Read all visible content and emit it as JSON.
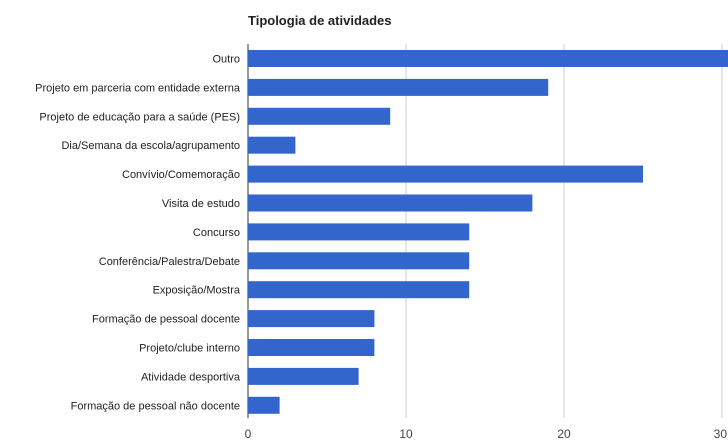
{
  "chart_data": {
    "type": "bar",
    "orientation": "horizontal",
    "title": "Tipologia de atividades",
    "xlabel": "",
    "ylabel": "",
    "categories": [
      "Outro",
      "Projeto em parceria com entidade externa",
      "Projeto de educação para a saúde (PES)",
      "Dia/Semana da escola/agrupamento",
      "Convívio/Comemoração",
      "Visita de estudo",
      "Concurso",
      "Conferência/Palestra/Debate",
      "Exposição/Mostra",
      "Formação de pessoal docente",
      "Projeto/clube interno",
      "Atividade desportiva",
      "Formação de pessoal não docente"
    ],
    "values": [
      31,
      19,
      9,
      3,
      25,
      18,
      14,
      14,
      14,
      8,
      8,
      7,
      2
    ],
    "xlim": [
      0,
      30
    ],
    "xticks": [
      "0",
      "10",
      "20",
      "30"
    ],
    "grid": true,
    "legend": "none",
    "bar_color": "#3366cc",
    "grid_color": "#cccccc"
  }
}
